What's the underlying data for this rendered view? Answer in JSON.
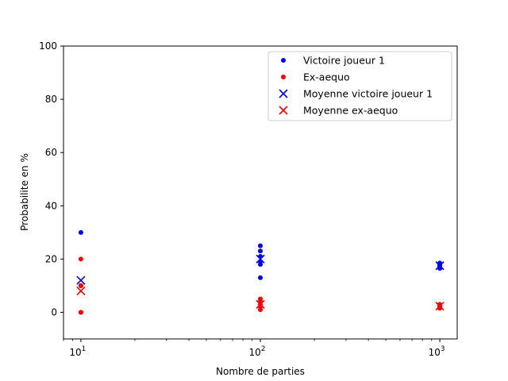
{
  "chart_data": {
    "type": "scatter",
    "xscale": "log",
    "xlim": [
      8,
      1250
    ],
    "ylim": [
      -10,
      100
    ],
    "xlabel": "Nombre de parties",
    "ylabel": "Probabilite en %",
    "xticks": [
      {
        "value": 10,
        "base": "10",
        "exp": "1"
      },
      {
        "value": 100,
        "base": "10",
        "exp": "2"
      },
      {
        "value": 1000,
        "base": "10",
        "exp": "3"
      }
    ],
    "yticks": [
      0,
      20,
      40,
      60,
      80,
      100
    ],
    "legend_position": "top-right",
    "series": [
      {
        "name": "Victoire joueur 1",
        "marker": "dot",
        "color": "#0000ff",
        "points": [
          {
            "x": 10,
            "y": 30
          },
          {
            "x": 10,
            "y": 10
          },
          {
            "x": 10,
            "y": 0
          },
          {
            "x": 10,
            "y": 10
          },
          {
            "x": 10,
            "y": 10
          },
          {
            "x": 100,
            "y": 25
          },
          {
            "x": 100,
            "y": 23
          },
          {
            "x": 100,
            "y": 21
          },
          {
            "x": 100,
            "y": 19
          },
          {
            "x": 100,
            "y": 18
          },
          {
            "x": 100,
            "y": 13
          },
          {
            "x": 1000,
            "y": 18.5
          },
          {
            "x": 1000,
            "y": 18
          },
          {
            "x": 1000,
            "y": 17.5
          },
          {
            "x": 1000,
            "y": 17
          },
          {
            "x": 1000,
            "y": 16.5
          }
        ]
      },
      {
        "name": "Ex-aequo",
        "marker": "dot",
        "color": "#ff0000",
        "points": [
          {
            "x": 10,
            "y": 20
          },
          {
            "x": 10,
            "y": 10
          },
          {
            "x": 10,
            "y": 0
          },
          {
            "x": 10,
            "y": 0
          },
          {
            "x": 10,
            "y": 10
          },
          {
            "x": 100,
            "y": 5
          },
          {
            "x": 100,
            "y": 4
          },
          {
            "x": 100,
            "y": 3
          },
          {
            "x": 100,
            "y": 2
          },
          {
            "x": 100,
            "y": 1
          },
          {
            "x": 1000,
            "y": 3
          },
          {
            "x": 1000,
            "y": 2.5
          },
          {
            "x": 1000,
            "y": 2
          },
          {
            "x": 1000,
            "y": 1.5
          }
        ]
      },
      {
        "name": "Moyenne victoire joueur 1",
        "marker": "x",
        "color": "#0000ff",
        "points": [
          {
            "x": 10,
            "y": 12
          },
          {
            "x": 100,
            "y": 20
          },
          {
            "x": 1000,
            "y": 17.5
          }
        ]
      },
      {
        "name": "Moyenne ex-aequo",
        "marker": "x",
        "color": "#ff0000",
        "points": [
          {
            "x": 10,
            "y": 8
          },
          {
            "x": 100,
            "y": 3
          },
          {
            "x": 1000,
            "y": 2.3
          }
        ]
      }
    ]
  }
}
